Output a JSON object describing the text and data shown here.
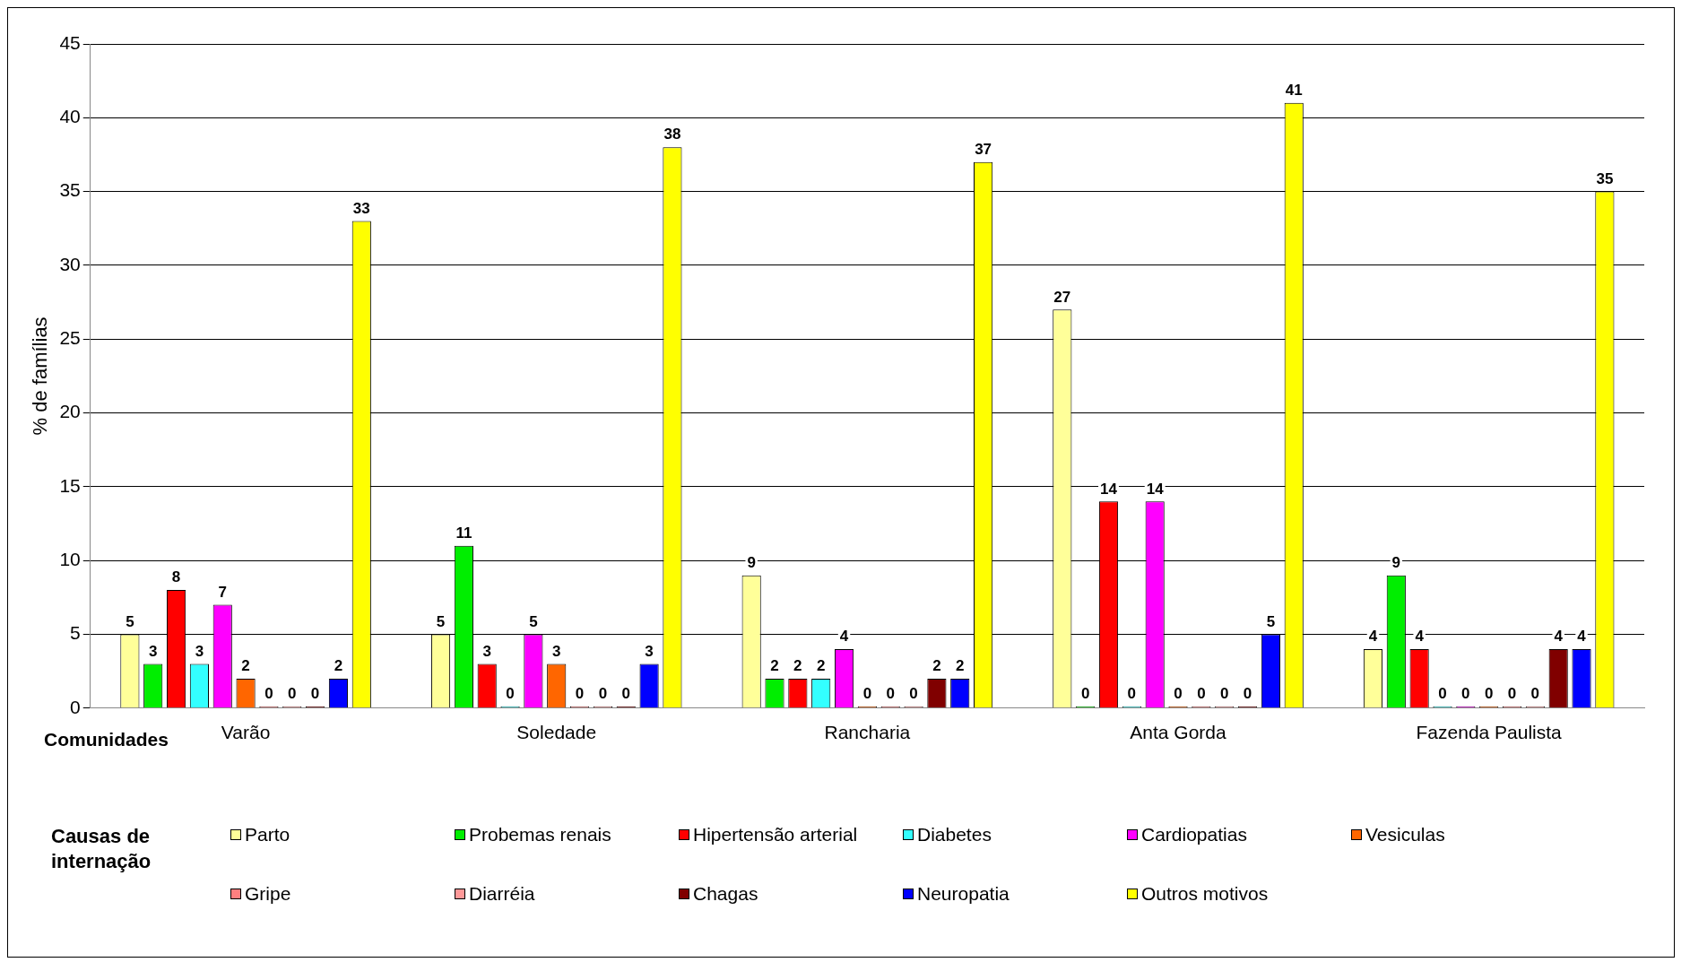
{
  "chart_data": {
    "type": "bar",
    "ylabel": "% de famílias",
    "xlabel": "Comunidades",
    "legend_title": "Causas de internação",
    "categories": [
      "Varão",
      "Soledade",
      "Rancharia",
      "Anta Gorda",
      "Fazenda Paulista"
    ],
    "ylim": [
      0,
      45
    ],
    "yticks": [
      0,
      5,
      10,
      15,
      20,
      25,
      30,
      35,
      40,
      45
    ],
    "grid": "y",
    "legend": "bottom",
    "data_labels": true,
    "series": [
      {
        "name": "Parto",
        "color": "#ffff99",
        "values": [
          5,
          5,
          9,
          27,
          4
        ]
      },
      {
        "name": "Probemas renais",
        "color": "#00ee00",
        "values": [
          3,
          11,
          2,
          0,
          9
        ]
      },
      {
        "name": "Hipertensão arterial",
        "color": "#ff0000",
        "values": [
          8,
          3,
          2,
          14,
          4
        ]
      },
      {
        "name": "Diabetes",
        "color": "#33ffff",
        "values": [
          3,
          0,
          2,
          0,
          0
        ]
      },
      {
        "name": "Cardiopatias",
        "color": "#ff00ff",
        "values": [
          7,
          5,
          4,
          14,
          0
        ]
      },
      {
        "name": "Vesiculas",
        "color": "#ff6600",
        "values": [
          2,
          3,
          0,
          0,
          0
        ]
      },
      {
        "name": "Gripe",
        "color": "#ff8080",
        "values": [
          0,
          0,
          0,
          0,
          0
        ]
      },
      {
        "name": "Diarréia",
        "color": "#ff9999",
        "values": [
          0,
          0,
          0,
          0,
          0
        ]
      },
      {
        "name": "Chagas",
        "color": "#800000",
        "values": [
          0,
          0,
          2,
          0,
          4
        ]
      },
      {
        "name": "Neuropatia",
        "color": "#0000ff",
        "values": [
          2,
          3,
          2,
          5,
          4
        ]
      },
      {
        "name": "Outros motivos",
        "color": "#ffff00",
        "values": [
          33,
          38,
          37,
          41,
          35
        ]
      }
    ]
  }
}
